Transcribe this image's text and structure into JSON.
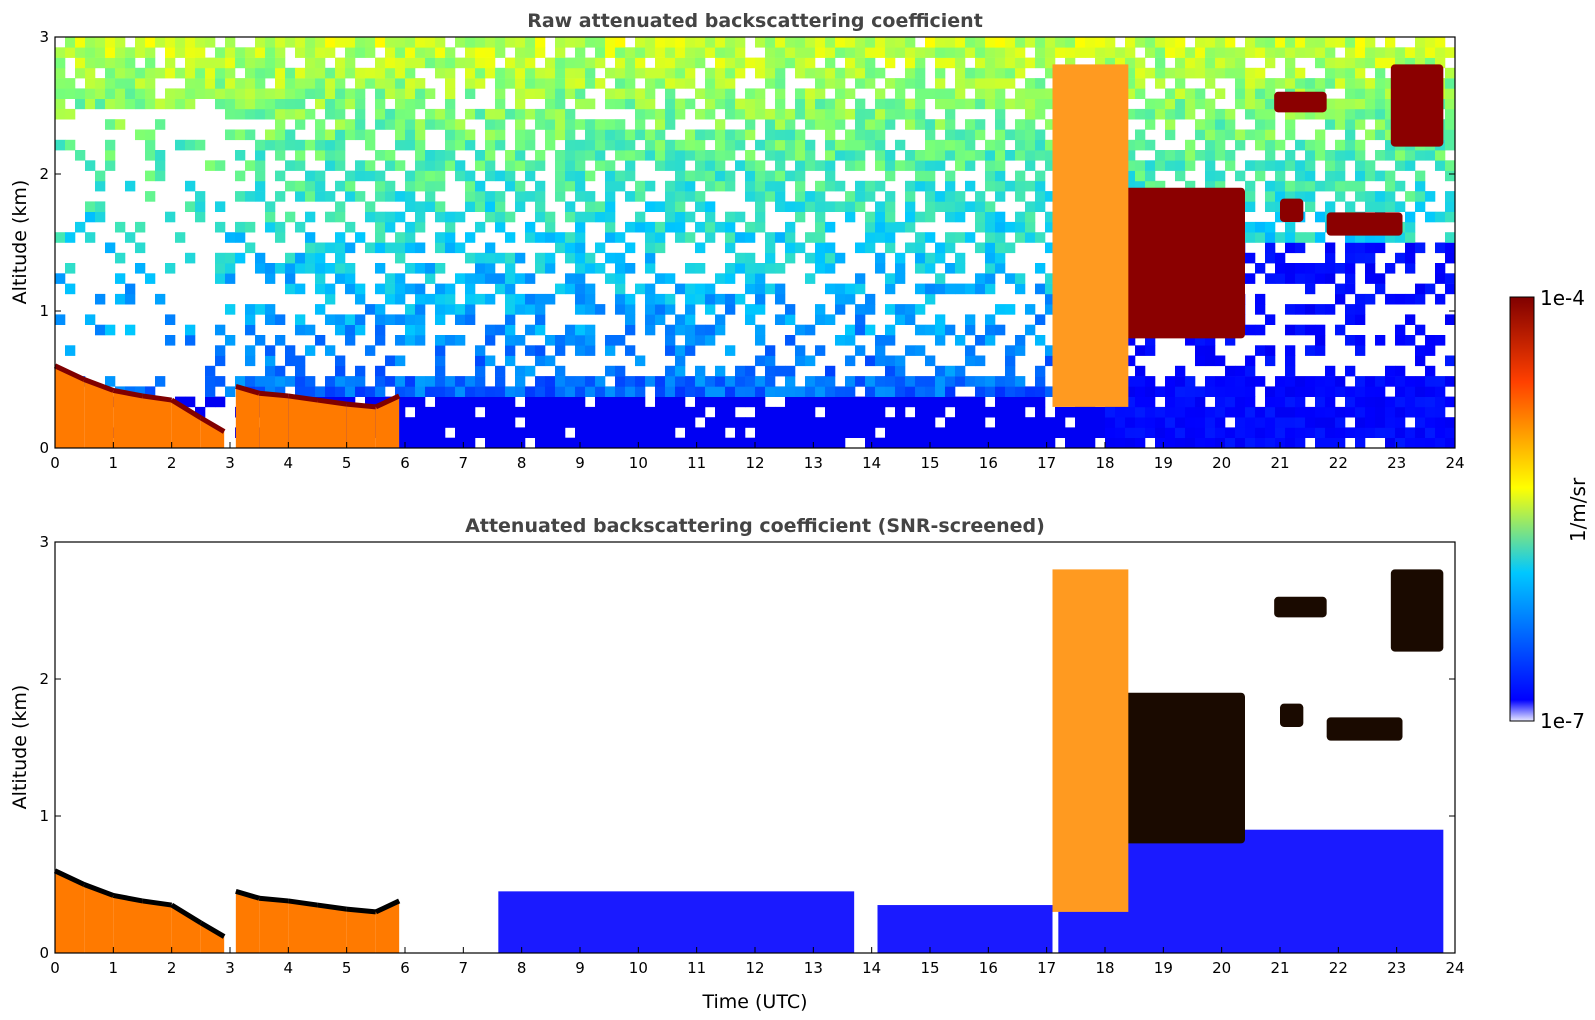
{
  "chart_data": [
    {
      "type": "heatmap",
      "title": "Raw attenuated backscattering coefficient",
      "xlabel": "",
      "ylabel": "Altitude (km)",
      "xlim": [
        0,
        24
      ],
      "ylim": [
        0,
        3
      ],
      "xticks": [
        "0",
        "1",
        "2",
        "3",
        "4",
        "5",
        "6",
        "7",
        "8",
        "9",
        "10",
        "11",
        "12",
        "13",
        "14",
        "15",
        "16",
        "17",
        "18",
        "19",
        "20",
        "21",
        "22",
        "23",
        "24"
      ],
      "yticks": [
        "0",
        "1",
        "2",
        "3"
      ],
      "features": [
        {
          "kind": "boundary_layer",
          "x": [
            0,
            0.5,
            1,
            1.5,
            2,
            2.5,
            2.9
          ],
          "top_km": [
            0.6,
            0.5,
            0.42,
            0.38,
            0.35,
            0.22,
            0.12
          ]
        },
        {
          "kind": "boundary_layer",
          "x": [
            3.1,
            3.5,
            4,
            4.5,
            5,
            5.5,
            5.9
          ],
          "top_km": [
            0.45,
            0.4,
            0.38,
            0.35,
            0.32,
            0.3,
            0.38
          ]
        },
        {
          "kind": "cloud_layer",
          "x_start": 17.8,
          "x_end": 20.4,
          "base_km": 0.8,
          "top_km": 1.9
        },
        {
          "kind": "cloud_layer",
          "x_start": 20.9,
          "x_end": 21.8,
          "base_km": 2.45,
          "top_km": 2.6
        },
        {
          "kind": "cloud_layer",
          "x_start": 21.0,
          "x_end": 21.4,
          "base_km": 1.65,
          "top_km": 1.82
        },
        {
          "kind": "cloud_layer",
          "x_start": 21.8,
          "x_end": 23.1,
          "base_km": 1.55,
          "top_km": 1.72
        },
        {
          "kind": "cloud_layer",
          "x_start": 22.9,
          "x_end": 23.8,
          "base_km": 2.2,
          "top_km": 2.8
        },
        {
          "kind": "aerosol_plume",
          "x_start": 17.1,
          "x_end": 18.4,
          "base_km": 0.3,
          "top_km": 2.8
        }
      ]
    },
    {
      "type": "heatmap",
      "title": "Attenuated backscattering coefficient (SNR-screened)",
      "xlabel": "Time (UTC)",
      "ylabel": "Altitude (km)",
      "xlim": [
        0,
        24
      ],
      "ylim": [
        0,
        3
      ],
      "xticks": [
        "0",
        "1",
        "2",
        "3",
        "4",
        "5",
        "6",
        "7",
        "8",
        "9",
        "10",
        "11",
        "12",
        "13",
        "14",
        "15",
        "16",
        "17",
        "18",
        "19",
        "20",
        "21",
        "22",
        "23",
        "24"
      ],
      "yticks": [
        "0",
        "1",
        "2",
        "3"
      ],
      "screened": true
    }
  ],
  "colorbar": {
    "label": "1/m/sr",
    "max_label": "1e-4",
    "min_label": "1e-7",
    "scale": "log",
    "range": [
      1e-07,
      0.0001
    ],
    "colormap": "jet",
    "colors": [
      "#e8e8ff",
      "#0000ff",
      "#00c8ff",
      "#ffff00",
      "#ff4000",
      "#800000"
    ]
  }
}
